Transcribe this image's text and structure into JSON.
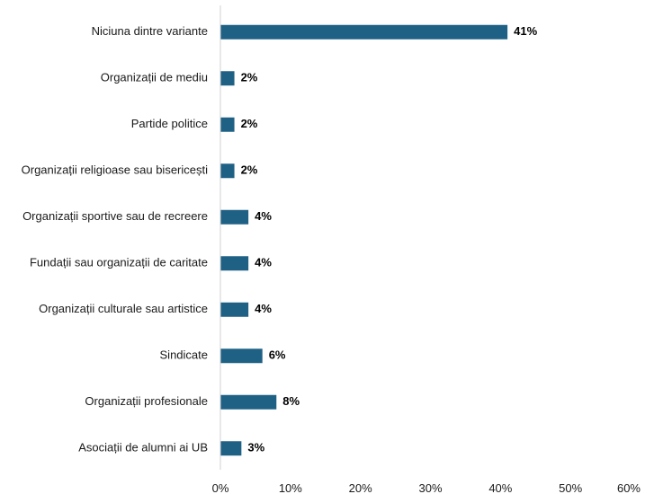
{
  "chart_data": {
    "type": "bar",
    "orientation": "horizontal",
    "categories": [
      "Niciuna dintre variante",
      "Organizații de mediu",
      "Partide politice",
      "Organizații religioase sau bisericești",
      "Organizații sportive sau de recreere",
      "Fundații sau organizații de caritate",
      "Organizații culturale sau artistice",
      "Sindicate",
      "Organizații profesionale",
      "Asociații de alumni ai UB"
    ],
    "values": [
      41,
      2,
      2,
      2,
      4,
      4,
      4,
      6,
      8,
      3
    ],
    "value_labels": [
      "41%",
      "2%",
      "2%",
      "2%",
      "4%",
      "4%",
      "4%",
      "6%",
      "8%",
      "3%"
    ],
    "xlim": [
      0,
      60
    ],
    "xticks": [
      0,
      10,
      20,
      30,
      40,
      50,
      60
    ],
    "xtick_labels": [
      "0%",
      "10%",
      "20%",
      "30%",
      "40%",
      "50%",
      "60%"
    ],
    "title": "",
    "xlabel": "",
    "ylabel": "",
    "grid": false,
    "legend": "none",
    "colors": {
      "bar": "#1f6185",
      "axis": "#d0d0d0"
    }
  }
}
